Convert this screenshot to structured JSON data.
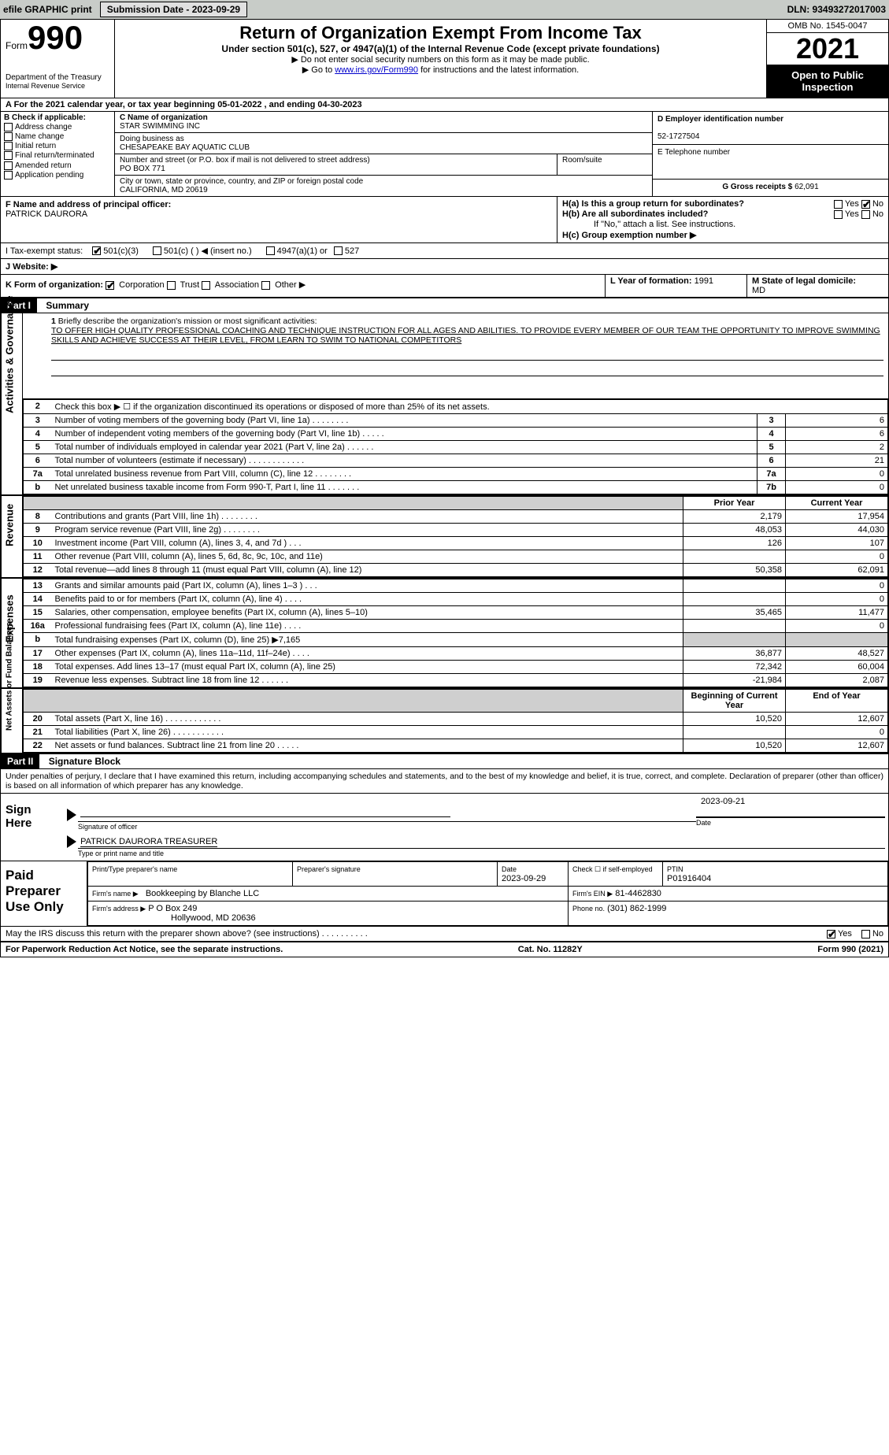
{
  "topbar": {
    "efile_label": "efile GRAPHIC print",
    "submission_label": "Submission Date - 2023-09-29",
    "dln_label": "DLN: 93493272017003"
  },
  "header": {
    "form_word": "Form",
    "form_number": "990",
    "title": "Return of Organization Exempt From Income Tax",
    "subtitle": "Under section 501(c), 527, or 4947(a)(1) of the Internal Revenue Code (except private foundations)",
    "note1": "▶ Do not enter social security numbers on this form as it may be made public.",
    "note2_pre": "▶ Go to ",
    "note2_link": "www.irs.gov/Form990",
    "note2_post": " for instructions and the latest information.",
    "dept": "Department of the Treasury",
    "irs": "Internal Revenue Service",
    "omb": "OMB No. 1545-0047",
    "year": "2021",
    "otp": "Open to Public Inspection"
  },
  "line_a": "A  For the 2021 calendar year, or tax year beginning 05-01-2022    , and ending 04-30-2023",
  "sec_b": {
    "label": "B Check if applicable:",
    "items": [
      "Address change",
      "Name change",
      "Initial return",
      "Final return/terminated",
      "Amended return",
      "Application pending"
    ]
  },
  "sec_c": {
    "c_label": "C Name of organization",
    "org_name": "STAR SWIMMING INC",
    "dba_label": "Doing business as",
    "dba": "CHESAPEAKE BAY AQUATIC CLUB",
    "addr_label": "Number and street (or P.O. box if mail is not delivered to street address)",
    "room_label": "Room/suite",
    "addr": "PO BOX 771",
    "city_label": "City or town, state or province, country, and ZIP or foreign postal code",
    "city": "CALIFORNIA, MD   20619"
  },
  "sec_d": {
    "label": "D Employer identification number",
    "value": "52-1727504"
  },
  "sec_e": {
    "label": "E Telephone number",
    "value": ""
  },
  "sec_g": {
    "label": "G Gross receipts $",
    "value": "62,091"
  },
  "sec_f": {
    "label": "F  Name and address of principal officer:",
    "name": "PATRICK DAURORA"
  },
  "sec_h": {
    "ha": "H(a)  Is this a group return for subordinates?",
    "hb": "H(b)  Are all subordinates included?",
    "hb_note": "If \"No,\" attach a list. See instructions.",
    "hc": "H(c)  Group exemption number ▶",
    "yes": "Yes",
    "no": "No"
  },
  "sec_i": {
    "label": "I   Tax-exempt status:",
    "op1": "501(c)(3)",
    "op2": "501(c) (  ) ◀ (insert no.)",
    "op3": "4947(a)(1) or",
    "op4": "527"
  },
  "sec_j": {
    "label": "J   Website: ▶"
  },
  "sec_k": {
    "label": "K Form of organization:",
    "ops": [
      "Corporation",
      "Trust",
      "Association",
      "Other ▶"
    ]
  },
  "sec_l": {
    "label": "L Year of formation:",
    "value": "1991"
  },
  "sec_m": {
    "label": "M State of legal domicile:",
    "value": "MD"
  },
  "part1": {
    "label": "Part I",
    "title": "Summary"
  },
  "mission": {
    "num": "1",
    "label": "Briefly describe the organization's mission or most significant activities:",
    "text": "TO OFFER HIGH QUALITY PROFESSIONAL COACHING AND TECHNIQUE INSTRUCTION FOR ALL AGES AND ABILITIES. TO PROVIDE EVERY MEMBER OF OUR TEAM THE OPPORTUNITY TO IMPROVE SWIMMING SKILLS AND ACHIEVE SUCCESS AT THEIR LEVEL, FROM LEARN TO SWIM TO NATIONAL COMPETITORS"
  },
  "gov_rows": [
    {
      "n": "2",
      "d": "Check this box ▶ ☐  if the organization discontinued its operations or disposed of more than 25% of its net assets.",
      "box": "",
      "v": ""
    },
    {
      "n": "3",
      "d": "Number of voting members of the governing body (Part VI, line 1a)   .    .    .    .    .    .    .    .",
      "box": "3",
      "v": "6"
    },
    {
      "n": "4",
      "d": "Number of independent voting members of the governing body (Part VI, line 1b)   .    .    .    .    .",
      "box": "4",
      "v": "6"
    },
    {
      "n": "5",
      "d": "Total number of individuals employed in calendar year 2021 (Part V, line 2a)   .    .    .    .    .    .",
      "box": "5",
      "v": "2"
    },
    {
      "n": "6",
      "d": "Total number of volunteers (estimate if necessary)    .    .    .    .    .    .    .    .    .    .    .    .",
      "box": "6",
      "v": "21"
    },
    {
      "n": "7a",
      "d": "Total unrelated business revenue from Part VIII, column (C), line 12  .    .    .    .    .    .    .    .",
      "box": "7a",
      "v": "0"
    },
    {
      "n": " b",
      "d": "Net unrelated business taxable income from Form 990-T, Part I, line 11    .    .    .    .    .    .    .",
      "box": "7b",
      "v": "0"
    }
  ],
  "twocol_hdr": {
    "prior": "Prior Year",
    "current": "Current Year"
  },
  "revenue_rows": [
    {
      "n": "8",
      "d": "Contributions and grants (Part VIII, line 1h)   .    .    .    .    .    .    .    .",
      "p": "2,179",
      "c": "17,954"
    },
    {
      "n": "9",
      "d": "Program service revenue (Part VIII, line 2g)   .    .    .    .    .    .    .    .",
      "p": "48,053",
      "c": "44,030"
    },
    {
      "n": "10",
      "d": "Investment income (Part VIII, column (A), lines 3, 4, and 7d )   .    .    .",
      "p": "126",
      "c": "107"
    },
    {
      "n": "11",
      "d": "Other revenue (Part VIII, column (A), lines 5, 6d, 8c, 9c, 10c, and 11e)",
      "p": "",
      "c": "0"
    },
    {
      "n": "12",
      "d": "Total revenue—add lines 8 through 11 (must equal Part VIII, column (A), line 12)",
      "p": "50,358",
      "c": "62,091"
    }
  ],
  "expense_rows": [
    {
      "n": "13",
      "d": "Grants and similar amounts paid (Part IX, column (A), lines 1–3 )  .    .    .",
      "p": "",
      "c": "0"
    },
    {
      "n": "14",
      "d": "Benefits paid to or for members (Part IX, column (A), line 4)  .    .    .    .",
      "p": "",
      "c": "0"
    },
    {
      "n": "15",
      "d": "Salaries, other compensation, employee benefits (Part IX, column (A), lines 5–10)",
      "p": "35,465",
      "c": "11,477"
    },
    {
      "n": "16a",
      "d": "Professional fundraising fees (Part IX, column (A), line 11e)  .    .    .    .",
      "p": "",
      "c": "0"
    },
    {
      "n": "b",
      "d": "Total fundraising expenses (Part IX, column (D), line 25) ▶7,165",
      "p": "GRAY",
      "c": "GRAY"
    },
    {
      "n": "17",
      "d": "Other expenses (Part IX, column (A), lines 11a–11d, 11f–24e)  .    .    .    .",
      "p": "36,877",
      "c": "48,527"
    },
    {
      "n": "18",
      "d": "Total expenses. Add lines 13–17 (must equal Part IX, column (A), line 25)",
      "p": "72,342",
      "c": "60,004"
    },
    {
      "n": "19",
      "d": "Revenue less expenses. Subtract line 18 from line 12  .    .    .    .    .    .",
      "p": "-21,984",
      "c": "2,087"
    }
  ],
  "net_hdr": {
    "begin": "Beginning of Current Year",
    "end": "End of Year"
  },
  "net_rows": [
    {
      "n": "20",
      "d": "Total assets (Part X, line 16)  .    .    .    .    .    .    .    .    .    .    .    .",
      "p": "10,520",
      "c": "12,607"
    },
    {
      "n": "21",
      "d": "Total liabilities (Part X, line 26)   .    .    .    .    .    .    .    .    .    .    .",
      "p": "",
      "c": "0"
    },
    {
      "n": "22",
      "d": "Net assets or fund balances. Subtract line 21 from line 20  .    .    .    .    .",
      "p": "10,520",
      "c": "12,607"
    }
  ],
  "part2": {
    "label": "Part II",
    "title": "Signature Block"
  },
  "penalty": "Under penalties of perjury, I declare that I have examined this return, including accompanying schedules and statements, and to the best of my knowledge and belief, it is true, correct, and complete. Declaration of preparer (other than officer) is based on all information of which preparer has any knowledge.",
  "sign": {
    "here": "Sign Here",
    "sig_of_officer": "Signature of officer",
    "date": "Date",
    "date_val": "2023-09-21",
    "name_title": "PATRICK DAURORA  TREASURER",
    "type_name": "Type or print name and title"
  },
  "paid": {
    "title": "Paid Preparer Use Only",
    "print_label": "Print/Type preparer's name",
    "sig_label": "Preparer's signature",
    "date_label": "Date",
    "date_val": "2023-09-29",
    "check_label": "Check ☐ if self-employed",
    "ptin_label": "PTIN",
    "ptin": "P01916404",
    "firm_name_label": "Firm's name     ▶",
    "firm_name": "Bookkeeping by Blanche LLC",
    "firm_ein_label": "Firm's EIN ▶",
    "firm_ein": "81-4462830",
    "firm_addr_label": "Firm's address ▶",
    "firm_addr1": "P O Box 249",
    "firm_addr2": "Hollywood, MD   20636",
    "phone_label": "Phone no.",
    "phone": "(301) 862-1999"
  },
  "may_irs": "May the IRS discuss this return with the preparer shown above? (see instructions)   .    .    .    .    .    .    .    .    .    .",
  "footer": {
    "left": "For Paperwork Reduction Act Notice, see the separate instructions.",
    "mid": "Cat. No. 11282Y",
    "right": "Form 990 (2021)"
  },
  "vlabels": {
    "gov": "Activities & Governance",
    "rev": "Revenue",
    "exp": "Expenses",
    "net": "Net Assets or Fund Balances"
  }
}
